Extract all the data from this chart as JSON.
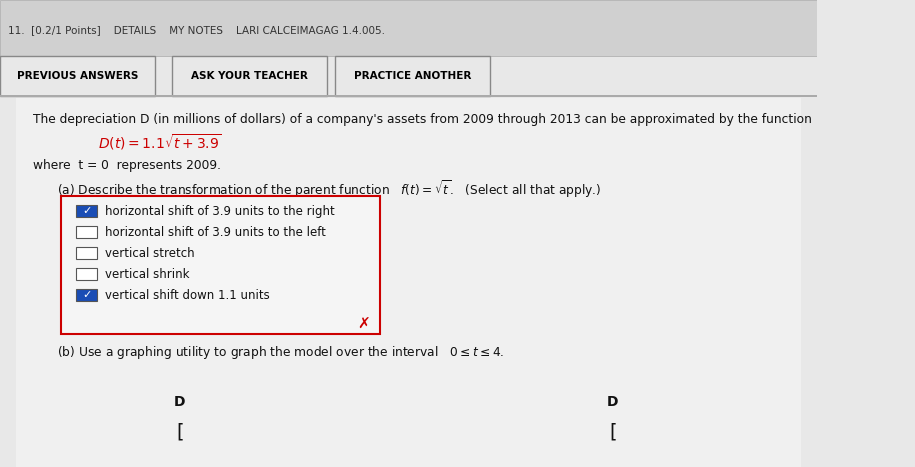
{
  "background_color": "#e8e8e8",
  "top_buttons": [
    "PREVIOUS ANSWERS",
    "ASK YOUR TEACHER",
    "PRACTICE ANOTHER"
  ],
  "top_bar_text": "11.  [0.2/1 Points]    DETAILS    MY NOTES    LARI CALCEIMAGAG 1.4.005.",
  "checkboxes": [
    {
      "text": "horizontal shift of 3.9 units to the right",
      "checked": true
    },
    {
      "text": "horizontal shift of 3.9 units to the left",
      "checked": false
    },
    {
      "text": "vertical stretch",
      "checked": false
    },
    {
      "text": "vertical shrink",
      "checked": false
    },
    {
      "text": "vertical shift down 1.1 units",
      "checked": true
    }
  ],
  "checkbox_box_color": "#cc0000",
  "check_color": "#1a4db5",
  "x_mark_color": "#cc0000",
  "formula_color": "#cc0000"
}
